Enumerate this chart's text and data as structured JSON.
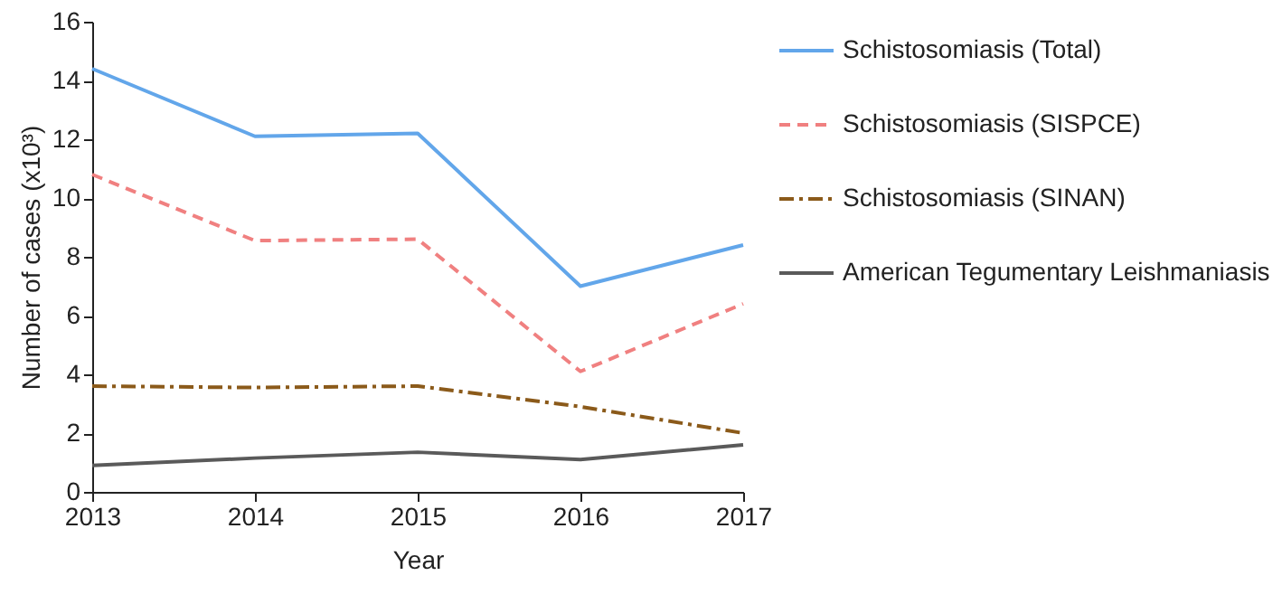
{
  "chart_data": {
    "type": "line",
    "xlabel": "Year",
    "ylabel": "Number of cases (x10³)",
    "x": [
      2013,
      2014,
      2015,
      2016,
      2017
    ],
    "xlim": [
      2013,
      2017
    ],
    "xticks": [
      2013,
      2014,
      2015,
      2016,
      2017
    ],
    "ylim": [
      0,
      16
    ],
    "yticks": [
      0,
      2,
      4,
      6,
      8,
      10,
      12,
      14,
      16
    ],
    "grid": false,
    "legend": "right",
    "marker": "none",
    "series": [
      {
        "name": "Schistosomiasis (Total)",
        "color": "#62a6ea",
        "line_style": "solid",
        "values": [
          14.4,
          12.1,
          12.2,
          7.0,
          8.4
        ]
      },
      {
        "name": "Schistosomiasis (SISPCE)",
        "color": "#f08080",
        "line_style": "dashed",
        "values": [
          10.8,
          8.55,
          8.6,
          4.1,
          6.4
        ]
      },
      {
        "name": "Schistosomiasis (SINAN)",
        "color": "#8b5a1a",
        "line_style": "dashdot",
        "values": [
          3.6,
          3.55,
          3.6,
          2.9,
          2.0
        ]
      },
      {
        "name": "American Tegumentary Leishmaniasis",
        "color": "#5a5a5a",
        "line_style": "solid",
        "values": [
          0.9,
          1.15,
          1.35,
          1.1,
          1.6
        ]
      }
    ]
  }
}
